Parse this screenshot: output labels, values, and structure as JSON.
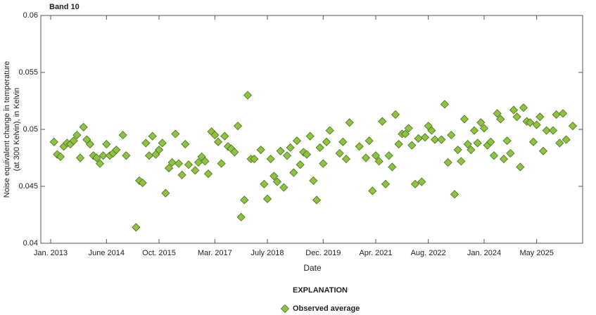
{
  "chart_data": {
    "type": "scatter",
    "title": "Band 10",
    "xlabel": "Date",
    "ylabel": [
      "Noise equivalent change in temperature",
      "(at 300 Kelvin), in Kelvin"
    ],
    "legend_title": "EXPLANATION",
    "xlim": [
      "2012-10",
      "2026-07"
    ],
    "xticks": [
      {
        "value": "2013-01",
        "label": "Jan. 2013"
      },
      {
        "value": "2014-06",
        "label": "June 2014"
      },
      {
        "value": "2015-10",
        "label": "Oct. 2015"
      },
      {
        "value": "2017-03",
        "label": "Mar. 2017"
      },
      {
        "value": "2018-07",
        "label": "July 2018"
      },
      {
        "value": "2019-12",
        "label": "Dec. 2019"
      },
      {
        "value": "2021-04",
        "label": "Apr. 2021"
      },
      {
        "value": "2022-08",
        "label": "Aug. 2022"
      },
      {
        "value": "2024-01",
        "label": "Jan. 2024"
      },
      {
        "value": "2025-05",
        "label": "May 2025"
      }
    ],
    "ylim": [
      0.04,
      0.06
    ],
    "yticks": [
      0.04,
      0.045,
      0.05,
      0.055,
      0.06
    ],
    "grid": false,
    "x": [
      "2013-02",
      "2013-03",
      "2013-04",
      "2013-05",
      "2013-06",
      "2013-07",
      "2013-08",
      "2013-09",
      "2013-10",
      "2013-11",
      "2013-12",
      "2014-01",
      "2014-02",
      "2014-03",
      "2014-04",
      "2014-05",
      "2014-06",
      "2014-07",
      "2014-08",
      "2014-09",
      "2014-11",
      "2014-12",
      "2015-03",
      "2015-04",
      "2015-05",
      "2015-06",
      "2015-07",
      "2015-08",
      "2015-09",
      "2015-10",
      "2015-11",
      "2015-12",
      "2016-01",
      "2016-02",
      "2016-03",
      "2016-04",
      "2016-05",
      "2016-06",
      "2016-07",
      "2016-09",
      "2016-10",
      "2016-11",
      "2016-12",
      "2017-01",
      "2017-02",
      "2017-03",
      "2017-04",
      "2017-05",
      "2017-06",
      "2017-07",
      "2017-08",
      "2017-09",
      "2017-10",
      "2017-11",
      "2017-12",
      "2018-01",
      "2018-02",
      "2018-03",
      "2018-05",
      "2018-06",
      "2018-07",
      "2018-08",
      "2018-09",
      "2018-10",
      "2018-11",
      "2018-12",
      "2019-01",
      "2019-02",
      "2019-03",
      "2019-04",
      "2019-05",
      "2019-06",
      "2019-07",
      "2019-08",
      "2019-09",
      "2019-10",
      "2019-11",
      "2019-12",
      "2020-01",
      "2020-02",
      "2020-05",
      "2020-06",
      "2020-07",
      "2020-08",
      "2020-11",
      "2021-01",
      "2021-02",
      "2021-03",
      "2021-04",
      "2021-05",
      "2021-06",
      "2021-07",
      "2021-08",
      "2021-09",
      "2021-10",
      "2021-11",
      "2021-12",
      "2022-01",
      "2022-02",
      "2022-03",
      "2022-04",
      "2022-05",
      "2022-06",
      "2022-07",
      "2022-08",
      "2022-09",
      "2022-10",
      "2022-12",
      "2023-01",
      "2023-02",
      "2023-03",
      "2023-04",
      "2023-05",
      "2023-06",
      "2023-07",
      "2023-08",
      "2023-09",
      "2023-10",
      "2023-11",
      "2023-12",
      "2024-01",
      "2024-02",
      "2024-03",
      "2024-04",
      "2024-05",
      "2024-06",
      "2024-07",
      "2024-08",
      "2024-09",
      "2024-10",
      "2024-11",
      "2024-12",
      "2025-01",
      "2025-02",
      "2025-03",
      "2025-04",
      "2025-05",
      "2025-06",
      "2025-07",
      "2025-08",
      "2025-10",
      "2025-11",
      "2025-12",
      "2026-01",
      "2026-02",
      "2026-04"
    ],
    "series": [
      {
        "name": "Observed average",
        "color": "#8cc43f",
        "edge": "#4d6b22",
        "values": [
          0.0489,
          0.0478,
          0.0476,
          0.0485,
          0.0488,
          0.0487,
          0.049,
          0.0495,
          0.0475,
          0.0502,
          0.0491,
          0.0487,
          0.0477,
          0.0475,
          0.047,
          0.0477,
          0.0487,
          0.0477,
          0.0479,
          0.0482,
          0.0495,
          0.0477,
          0.0414,
          0.0455,
          0.0453,
          0.0488,
          0.0477,
          0.0494,
          0.0478,
          0.0482,
          0.0488,
          0.0444,
          0.0466,
          0.0471,
          0.0496,
          0.047,
          0.046,
          0.0487,
          0.0469,
          0.0464,
          0.0471,
          0.0476,
          0.0472,
          0.0461,
          0.0498,
          0.0495,
          0.0489,
          0.047,
          0.0494,
          0.0485,
          0.0483,
          0.048,
          0.0503,
          0.0423,
          0.0438,
          0.053,
          0.0474,
          0.0474,
          0.0482,
          0.0452,
          0.0439,
          0.0474,
          0.0459,
          0.0454,
          0.0481,
          0.0449,
          0.0477,
          0.0484,
          0.0462,
          0.049,
          0.0469,
          0.048,
          0.0478,
          0.0494,
          0.0455,
          0.0438,
          0.0484,
          0.047,
          0.0489,
          0.0499,
          0.0479,
          0.0489,
          0.0474,
          0.0506,
          0.0485,
          0.0475,
          0.049,
          0.0446,
          0.0477,
          0.0472,
          0.0507,
          0.0452,
          0.0477,
          0.0467,
          0.0513,
          0.0487,
          0.0496,
          0.0496,
          0.0501,
          0.0486,
          0.0452,
          0.0492,
          0.0454,
          0.0493,
          0.0503,
          0.0499,
          0.0491,
          0.0491,
          0.0522,
          0.0471,
          0.0495,
          0.0443,
          0.0482,
          0.0472,
          0.0509,
          0.0487,
          0.0482,
          0.0499,
          0.0488,
          0.0506,
          0.0501,
          0.0486,
          0.0489,
          0.0477,
          0.0514,
          0.0509,
          0.0474,
          0.049,
          0.0479,
          0.0517,
          0.0511,
          0.0467,
          0.0519,
          0.0507,
          0.0506,
          0.0489,
          0.0504,
          0.0511,
          0.0481,
          0.0499,
          0.0499,
          0.0513,
          0.0488,
          0.0514,
          0.0491,
          0.0503
        ]
      }
    ]
  }
}
